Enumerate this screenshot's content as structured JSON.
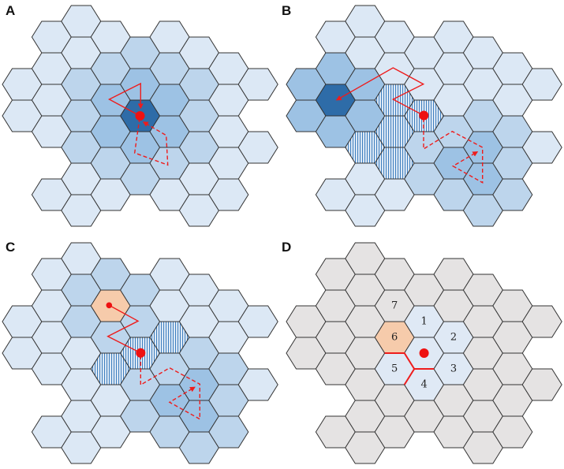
{
  "colors": {
    "light": "#dce8f5",
    "medium": "#bdd5ec",
    "darker": "#9dc2e4",
    "dark": "#2e6ca8",
    "orange": "#f6cbab",
    "gray": "#e5e3e3",
    "lightblue": "#dfe9f5",
    "stripe": "#3f7fbf",
    "path": "#ee1c1c",
    "stroke": "#333333"
  },
  "grid": {
    "columns": [
      [
        5,
        7
      ],
      [
        2,
        4,
        6,
        8,
        12
      ],
      [
        1,
        3,
        5,
        7,
        9,
        11,
        13
      ],
      [
        2,
        4,
        6,
        8,
        10,
        12
      ],
      [
        3,
        5,
        7,
        9,
        11
      ],
      [
        2,
        4,
        6,
        8,
        10,
        12
      ],
      [
        3,
        5,
        7,
        9,
        11,
        13
      ],
      [
        4,
        6,
        8,
        10,
        12
      ],
      [
        5,
        9
      ]
    ]
  },
  "panels": [
    {
      "label": "A",
      "base": "light",
      "cells": {
        "dark": [
          [
            4,
            7
          ]
        ],
        "darker": [
          [
            4,
            5
          ],
          [
            4,
            9
          ],
          [
            3,
            6
          ],
          [
            3,
            8
          ],
          [
            5,
            6
          ],
          [
            5,
            8
          ]
        ],
        "medium": [
          [
            2,
            5
          ],
          [
            2,
            7
          ],
          [
            2,
            9
          ],
          [
            3,
            4
          ],
          [
            3,
            10
          ],
          [
            4,
            3
          ],
          [
            4,
            11
          ],
          [
            5,
            4
          ],
          [
            5,
            10
          ],
          [
            6,
            5
          ],
          [
            6,
            7
          ],
          [
            6,
            9
          ]
        ]
      }
    },
    {
      "label": "B",
      "base": "light",
      "cells": {
        "dark": [
          [
            1,
            6
          ]
        ],
        "darker": [
          [
            1,
            4
          ],
          [
            1,
            8
          ],
          [
            0,
            5
          ],
          [
            0,
            7
          ],
          [
            2,
            5
          ],
          [
            2,
            7
          ],
          [
            5,
            10
          ],
          [
            6,
            9
          ],
          [
            6,
            11
          ]
        ],
        "striped": [
          [
            2,
            9
          ],
          [
            3,
            6
          ],
          [
            3,
            8
          ],
          [
            3,
            10
          ],
          [
            4,
            7
          ]
        ],
        "medium": [
          [
            4,
            9
          ],
          [
            4,
            11
          ],
          [
            5,
            8
          ],
          [
            5,
            12
          ],
          [
            6,
            7
          ],
          [
            6,
            13
          ],
          [
            7,
            8
          ],
          [
            7,
            10
          ],
          [
            7,
            12
          ]
        ]
      }
    },
    {
      "label": "C",
      "base": "light",
      "cells": {
        "orange": [
          [
            3,
            4
          ]
        ],
        "medium": [
          [
            2,
            3
          ],
          [
            2,
            5
          ],
          [
            3,
            2
          ],
          [
            3,
            6
          ],
          [
            4,
            3
          ],
          [
            4,
            5
          ],
          [
            4,
            9
          ],
          [
            4,
            11
          ],
          [
            5,
            8
          ],
          [
            5,
            12
          ],
          [
            6,
            7
          ],
          [
            6,
            13
          ],
          [
            7,
            8
          ],
          [
            7,
            10
          ],
          [
            7,
            12
          ]
        ],
        "darker": [
          [
            5,
            10
          ],
          [
            6,
            9
          ],
          [
            6,
            11
          ]
        ],
        "striped": [
          [
            4,
            7
          ],
          [
            5,
            6
          ],
          [
            3,
            8
          ]
        ]
      }
    },
    {
      "label": "D",
      "base": "gray",
      "cells": {
        "lightblue": [
          [
            4,
            7
          ],
          [
            4,
            5
          ],
          [
            5,
            6
          ],
          [
            5,
            8
          ],
          [
            4,
            9
          ],
          [
            3,
            8
          ]
        ],
        "orange": [
          [
            3,
            6
          ]
        ]
      },
      "numbers": [
        {
          "text": "1",
          "cell": [
            4,
            5
          ]
        },
        {
          "text": "2",
          "cell": [
            5,
            6
          ]
        },
        {
          "text": "3",
          "cell": [
            5,
            8
          ]
        },
        {
          "text": "4",
          "cell": [
            4,
            9
          ]
        },
        {
          "text": "5",
          "cell": [
            3,
            8
          ]
        },
        {
          "text": "6",
          "cell": [
            3,
            6
          ]
        },
        {
          "text": "7",
          "cell": [
            3,
            4
          ]
        }
      ]
    }
  ]
}
